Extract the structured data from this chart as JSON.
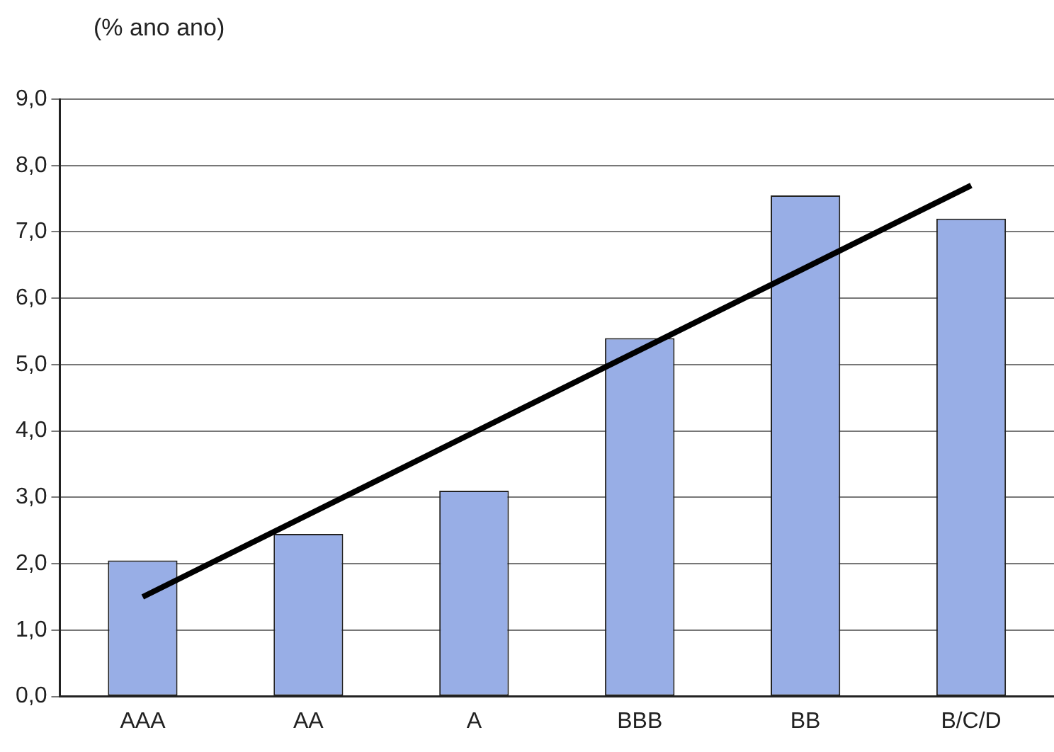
{
  "chart_data": {
    "type": "bar",
    "ylabel": "(% ano ano)",
    "categories": [
      "AAA",
      "AA",
      "A",
      "BBB",
      "BB",
      "B/C/D"
    ],
    "series": [
      {
        "color": "#98aee6",
        "values": [
          2.05,
          2.45,
          3.1,
          5.4,
          7.55,
          7.2
        ]
      },
      {
        "type": "line",
        "color": "#000000",
        "values": [
          1.5,
          2.74,
          3.98,
          5.22,
          6.46,
          7.7
        ]
      }
    ],
    "ylim": [
      0,
      9
    ],
    "yticks": [
      {
        "value": 0,
        "label": "0,0"
      },
      {
        "value": 1,
        "label": "1,0"
      },
      {
        "value": 2,
        "label": "2,0"
      },
      {
        "value": 3,
        "label": "3,0"
      },
      {
        "value": 4,
        "label": "4,0"
      },
      {
        "value": 5,
        "label": "5,0"
      },
      {
        "value": 6,
        "label": "6,0"
      },
      {
        "value": 7,
        "label": "7,0"
      },
      {
        "value": 8,
        "label": "8,0"
      },
      {
        "value": 9,
        "label": "9,0"
      }
    ],
    "grid": "y",
    "legend": false,
    "marker": "none",
    "line_style": "solid"
  }
}
